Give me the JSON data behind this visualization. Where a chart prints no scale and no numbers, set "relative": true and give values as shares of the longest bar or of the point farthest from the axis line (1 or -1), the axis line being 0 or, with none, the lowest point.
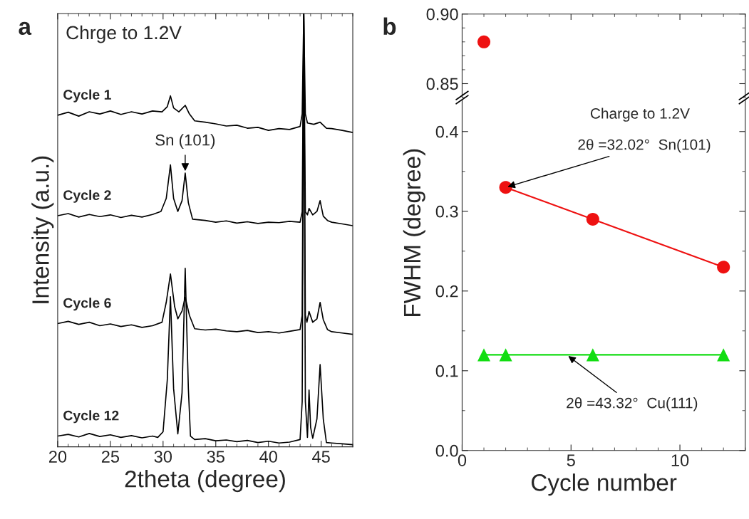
{
  "chart_data": [
    {
      "type": "line",
      "relative": true,
      "xlabel": "2theta (degree)",
      "ylabel": "Intensity (a.u.)",
      "xlim": [
        20,
        48
      ],
      "xticks": [
        20,
        25,
        30,
        35,
        40,
        45
      ],
      "tick_labels": "x",
      "grid": false,
      "marker": "none",
      "annotations": [
        "a",
        "Chrge to 1.2V",
        {
          "text": "Sn (101)",
          "x": 32.1,
          "y": 0.63
        }
      ],
      "series": [
        {
          "name": "Cycle 1",
          "color": "#000000",
          "x": [
            20,
            21,
            22,
            23,
            24,
            25,
            26,
            27,
            28,
            29,
            29.9,
            30.4,
            30.7,
            31.0,
            31.5,
            32.1,
            32.5,
            33,
            34,
            35,
            36,
            37,
            38,
            39,
            40,
            41,
            42,
            43.0,
            43.2,
            43.35,
            43.5,
            43.7,
            44.3,
            44.9,
            45.5,
            46,
            47,
            48
          ],
          "values": [
            0.764,
            0.771,
            0.762,
            0.772,
            0.767,
            0.774,
            0.766,
            0.772,
            0.767,
            0.774,
            0.772,
            0.784,
            0.809,
            0.781,
            0.772,
            0.787,
            0.767,
            0.751,
            0.748,
            0.744,
            0.739,
            0.741,
            0.734,
            0.736,
            0.729,
            0.733,
            0.731,
            0.738,
            0.767,
            1.0,
            0.767,
            0.746,
            0.743,
            0.748,
            0.734,
            0.733,
            0.729,
            0.724
          ]
        },
        {
          "name": "Cycle 2",
          "color": "#000000",
          "x": [
            20,
            21,
            22,
            23,
            24,
            25,
            26,
            27,
            28,
            29,
            29.8,
            30.3,
            30.7,
            31.0,
            31.4,
            31.8,
            32.1,
            32.4,
            32.8,
            34,
            35,
            36,
            37,
            38,
            39,
            40,
            41,
            42,
            43.0,
            43.2,
            43.35,
            43.5,
            43.7,
            43.85,
            44.2,
            44.6,
            44.9,
            45.2,
            45.6,
            46,
            47,
            48
          ],
          "values": [
            0.531,
            0.536,
            0.528,
            0.534,
            0.529,
            0.533,
            0.527,
            0.532,
            0.528,
            0.534,
            0.541,
            0.571,
            0.649,
            0.571,
            0.541,
            0.566,
            0.63,
            0.561,
            0.523,
            0.52,
            0.516,
            0.519,
            0.514,
            0.517,
            0.513,
            0.516,
            0.515,
            0.518,
            0.516,
            0.54,
            1.0,
            0.54,
            0.533,
            0.548,
            0.533,
            0.541,
            0.566,
            0.53,
            0.52,
            0.516,
            0.512,
            0.508
          ]
        },
        {
          "name": "Cycle 6",
          "color": "#000000",
          "x": [
            20,
            21,
            22,
            23,
            24,
            25,
            26,
            27,
            28,
            29,
            29.9,
            30.3,
            30.7,
            31.1,
            31.4,
            31.8,
            32.1,
            32.5,
            33,
            34,
            35,
            36,
            37,
            38,
            39,
            40,
            41,
            42,
            43.0,
            43.2,
            43.35,
            43.5,
            43.65,
            43.85,
            44.2,
            44.6,
            44.9,
            45.2,
            45.6,
            46,
            47,
            48
          ],
          "values": [
            0.281,
            0.286,
            0.279,
            0.284,
            0.276,
            0.28,
            0.274,
            0.278,
            0.272,
            0.276,
            0.284,
            0.33,
            0.396,
            0.32,
            0.292,
            0.31,
            0.342,
            0.3,
            0.269,
            0.266,
            0.268,
            0.264,
            0.262,
            0.265,
            0.26,
            0.262,
            0.259,
            0.263,
            0.267,
            0.3,
            1.0,
            0.3,
            0.284,
            0.309,
            0.284,
            0.292,
            0.33,
            0.29,
            0.267,
            0.262,
            0.259,
            0.256
          ]
        },
        {
          "name": "Cycle 12",
          "color": "#000000",
          "x": [
            20,
            21,
            22,
            23,
            24,
            25,
            26,
            27,
            28,
            29,
            29.5,
            30.0,
            30.4,
            30.7,
            31.0,
            31.4,
            31.8,
            32.1,
            32.4,
            32.6,
            33,
            34,
            35,
            36,
            37,
            38,
            39,
            40,
            41,
            42,
            43.0,
            43.2,
            43.35,
            43.5,
            43.7,
            43.85,
            44.0,
            44.2,
            44.6,
            44.9,
            45.2,
            45.5,
            46,
            47,
            48
          ],
          "values": [
            0.02,
            0.024,
            0.018,
            0.026,
            0.019,
            0.023,
            0.017,
            0.021,
            0.016,
            0.02,
            0.017,
            0.03,
            0.15,
            0.343,
            0.13,
            0.025,
            0.12,
            0.409,
            0.13,
            0.02,
            0.012,
            0.014,
            0.009,
            0.011,
            0.007,
            0.01,
            0.005,
            0.008,
            0.004,
            0.006,
            0.012,
            0.1,
            1.0,
            0.1,
            0.017,
            0.127,
            0.04,
            0.015,
            0.06,
            0.186,
            0.06,
            0.005,
            0.004,
            0.002,
            0.0
          ]
        }
      ]
    },
    {
      "type": "line",
      "xlim": [
        0,
        13
      ],
      "ylim": [
        0.84,
        0.9
      ],
      "yticks": [
        0.85,
        {
          "value": 0.9,
          "label": "0.90"
        }
      ],
      "tick_labels": "y",
      "grid": false,
      "annotations": [
        "b"
      ],
      "series": [
        {
          "color": "#ee1111",
          "marker": "circle",
          "x": [
            1
          ],
          "values": [
            0.88
          ]
        }
      ]
    },
    {
      "type": "line",
      "xlabel": "Cycle number",
      "ylabel": "FWHM (degree)",
      "xlim": [
        0,
        13
      ],
      "xticks": [
        0,
        5,
        10
      ],
      "ylim": [
        0,
        0.44
      ],
      "yticks": [
        {
          "value": 0,
          "label": "0.0"
        },
        0.1,
        0.2,
        0.3,
        0.4
      ],
      "grid": false,
      "annotations": [
        "Charge to 1.2V",
        {
          "text": "2θ =32.02°  Sn(101)",
          "x": 2,
          "y": 0.33
        },
        {
          "text": "2θ =43.32°  Cu(111)",
          "x": 4.8,
          "y": 0.12
        }
      ],
      "series": [
        {
          "color": "#ee1111",
          "marker": "circle",
          "x": [
            2,
            6,
            12
          ],
          "values": [
            0.33,
            0.29,
            0.23
          ]
        },
        {
          "color": "#11dd11",
          "marker": "triangle",
          "x": [
            1,
            2,
            6,
            12
          ],
          "values": [
            0.12,
            0.12,
            0.12,
            0.12
          ]
        }
      ]
    }
  ]
}
